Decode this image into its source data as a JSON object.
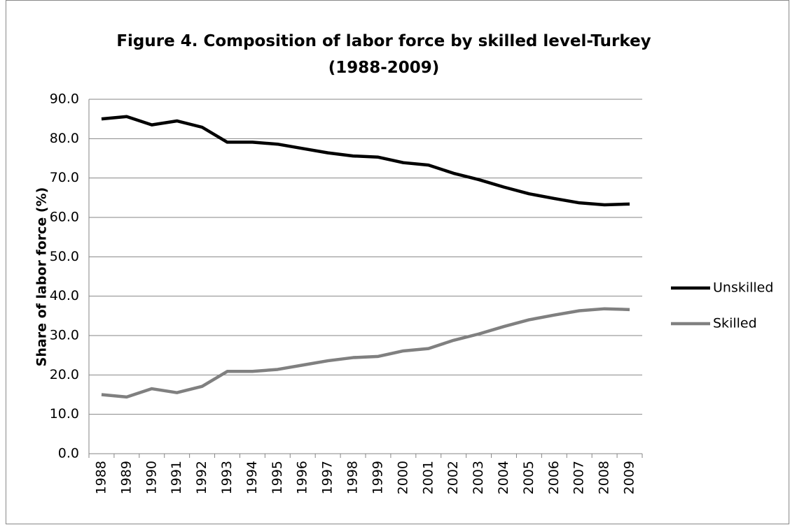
{
  "chart_data": {
    "type": "line",
    "title": "Figure 4. Composition of labor force by skilled level-Turkey\n(1988-2009)",
    "y_label": "Share of labor force (%)",
    "categories": [
      "1988",
      "1989",
      "1990",
      "1991",
      "1992",
      "1993",
      "1994",
      "1995",
      "1996",
      "1997",
      "1998",
      "1999",
      "2000",
      "2001",
      "2002",
      "2003",
      "2004",
      "2005",
      "2006",
      "2007",
      "2008",
      "2009"
    ],
    "series": [
      {
        "name": "Unskilled",
        "color": "#000000",
        "values": [
          85.0,
          85.6,
          83.5,
          84.5,
          82.9,
          79.1,
          79.1,
          78.6,
          77.5,
          76.4,
          75.6,
          75.3,
          73.9,
          73.3,
          71.2,
          69.6,
          67.7,
          66.0,
          64.8,
          63.7,
          63.2,
          63.4
        ]
      },
      {
        "name": "Skilled",
        "color": "#808080",
        "values": [
          15.0,
          14.4,
          16.5,
          15.5,
          17.1,
          20.9,
          20.9,
          21.4,
          22.5,
          23.6,
          24.4,
          24.7,
          26.1,
          26.7,
          28.8,
          30.4,
          32.3,
          34.0,
          35.2,
          36.3,
          36.8,
          36.6
        ]
      }
    ],
    "ylim": [
      0,
      90
    ],
    "yticks": [
      {
        "value": 0,
        "label": "0.0"
      },
      {
        "value": 10,
        "label": "10.0"
      },
      {
        "value": 20,
        "label": "20.0"
      },
      {
        "value": 30,
        "label": "30.0"
      },
      {
        "value": 40,
        "label": "40.0"
      },
      {
        "value": 50,
        "label": "50.0"
      },
      {
        "value": 60,
        "label": "60.0"
      },
      {
        "value": 70,
        "label": "70.0"
      },
      {
        "value": 80,
        "label": "80.0"
      },
      {
        "value": 90,
        "label": "90.0"
      }
    ],
    "grid": true,
    "legend": "right"
  }
}
